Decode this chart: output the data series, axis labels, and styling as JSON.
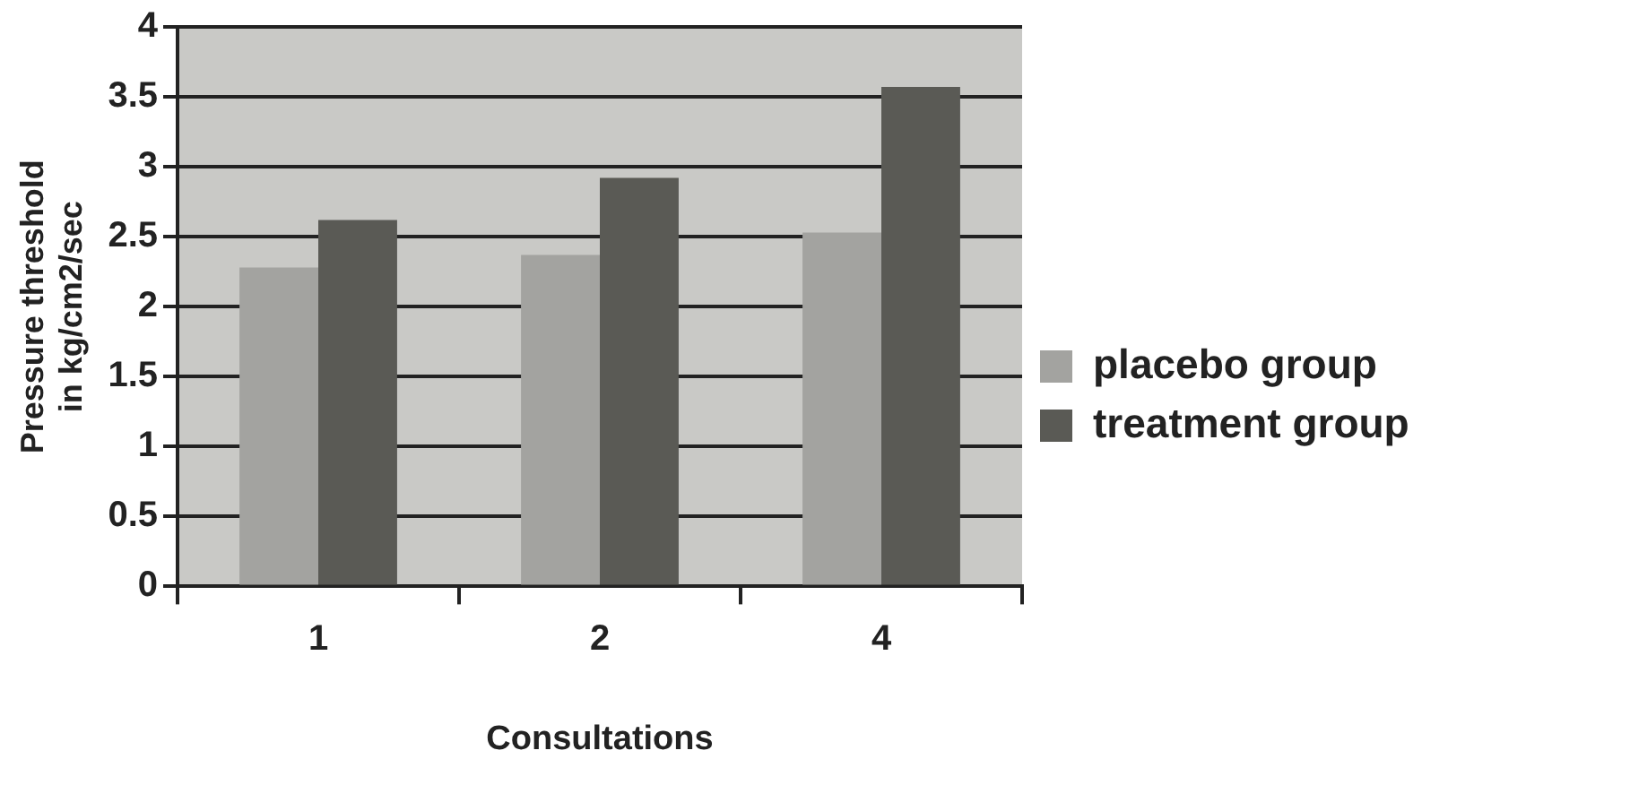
{
  "chart_data": {
    "type": "bar",
    "xlabel": "Consultations",
    "ylabel": "Pressure threshold in kg/cm2/sec",
    "categories": [
      "1",
      "2",
      "4"
    ],
    "series": [
      {
        "name": "placebo group",
        "color": "#a3a3a0",
        "values": [
          2.28,
          2.37,
          2.53
        ]
      },
      {
        "name": "treatment group",
        "color": "#5a5a55",
        "values": [
          2.62,
          2.92,
          3.57
        ]
      }
    ],
    "ylim": [
      0,
      4
    ],
    "yticks": [
      0,
      0.5,
      1,
      1.5,
      2,
      2.5,
      3,
      3.5,
      4
    ],
    "grid": "y",
    "legend": "right"
  }
}
